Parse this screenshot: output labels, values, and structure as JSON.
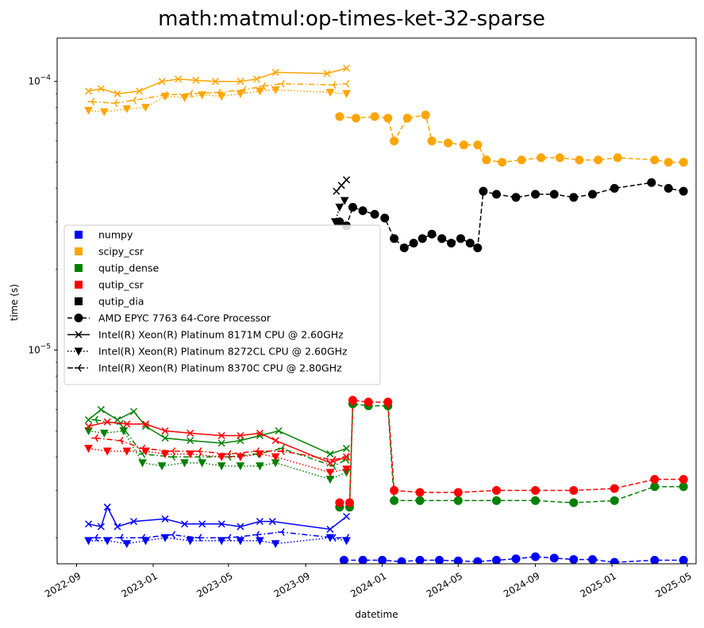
{
  "chart_data": {
    "type": "line",
    "title": "math:matmul:op-times-ket-32-sparse",
    "xlabel": "datetime",
    "ylabel": "time (s)",
    "y_scale": "log",
    "xlim": [
      "2022-08-01",
      "2025-05-15"
    ],
    "ylim": [
      1.6e-06,
      0.000145
    ],
    "x_ticks": [
      {
        "date": "2022-09-01",
        "label": "2022-09"
      },
      {
        "date": "2023-01-01",
        "label": "2023-01"
      },
      {
        "date": "2023-05-01",
        "label": "2023-05"
      },
      {
        "date": "2023-09-01",
        "label": "2023-09"
      },
      {
        "date": "2024-01-01",
        "label": "2024-01"
      },
      {
        "date": "2024-05-01",
        "label": "2024-05"
      },
      {
        "date": "2024-09-01",
        "label": "2024-09"
      },
      {
        "date": "2025-01-01",
        "label": "2025-01"
      },
      {
        "date": "2025-05-01",
        "label": "2025-05"
      }
    ],
    "y_ticks": [
      {
        "value": 1e-05,
        "label": "10^-5",
        "base": "10",
        "exp": "−5"
      },
      {
        "value": 0.0001,
        "label": "10^-4",
        "base": "10",
        "exp": "−4"
      }
    ],
    "grid": false,
    "legend_position": "center-left",
    "colors": {
      "numpy": "#0000ff",
      "scipy_csr": "#ffa500",
      "qutip_dense": "#008000",
      "qutip_csr": "#ff0000",
      "qutip_dia": "#000000"
    },
    "legend": {
      "libraries": [
        "numpy",
        "scipy_csr",
        "qutip_dense",
        "qutip_csr",
        "qutip_dia"
      ],
      "cpus": [
        {
          "label": "AMD EPYC 7763 64-Core Processor",
          "linestyle": "dashed",
          "marker": "circle"
        },
        {
          "label": "Intel(R) Xeon(R) Platinum 8171M CPU @ 2.60GHz",
          "linestyle": "solid",
          "marker": "x"
        },
        {
          "label": "Intel(R) Xeon(R) Platinum 8272CL CPU @ 2.60GHz",
          "linestyle": "dotted",
          "marker": "triangle-down"
        },
        {
          "label": "Intel(R) Xeon(R) Platinum 8370C CPU @ 2.80GHz",
          "linestyle": "dashdot",
          "marker": "tri-left"
        }
      ]
    },
    "series": [
      {
        "library": "scipy_csr",
        "cpu": "Intel(R) Xeon(R) Platinum 8171M CPU @ 2.60GHz",
        "x": [
          "2022-09-20",
          "2022-10-10",
          "2022-11-05",
          "2022-12-10",
          "2023-01-15",
          "2023-02-10",
          "2023-03-10",
          "2023-04-10",
          "2023-05-20",
          "2023-06-15",
          "2023-07-15",
          "2023-10-05",
          "2023-11-05"
        ],
        "y": [
          9.2e-05,
          9.4e-05,
          9e-05,
          9.2e-05,
          0.0001,
          0.000102,
          0.000101,
          0.0001,
          0.0001,
          0.000102,
          0.000108,
          0.000107,
          0.000112
        ]
      },
      {
        "library": "scipy_csr",
        "cpu": "Intel(R) Xeon(R) Platinum 8272CL CPU @ 2.60GHz",
        "x": [
          "2022-09-20",
          "2022-10-15",
          "2022-11-20",
          "2022-12-20",
          "2023-01-20",
          "2023-02-20",
          "2023-03-20",
          "2023-04-20",
          "2023-05-20",
          "2023-06-20",
          "2023-07-15",
          "2023-10-10",
          "2023-11-05"
        ],
        "y": [
          7.8e-05,
          7.7e-05,
          7.9e-05,
          8e-05,
          8.8e-05,
          8.7e-05,
          8.9e-05,
          8.8e-05,
          9e-05,
          9.2e-05,
          9.3e-05,
          9.1e-05,
          9e-05
        ]
      },
      {
        "library": "scipy_csr",
        "cpu": "Intel(R) Xeon(R) Platinum 8370C CPU @ 2.80GHz",
        "x": [
          "2022-09-25",
          "2022-11-01",
          "2022-12-01",
          "2023-01-20",
          "2023-03-01",
          "2023-04-15",
          "2023-05-25",
          "2023-06-25",
          "2023-07-25",
          "2023-10-15",
          "2023-11-05"
        ],
        "y": [
          8.4e-05,
          8.3e-05,
          8.5e-05,
          8.9e-05,
          9e-05,
          9.1e-05,
          9.3e-05,
          9.6e-05,
          9.8e-05,
          9.7e-05,
          9.8e-05
        ]
      },
      {
        "library": "scipy_csr",
        "cpu": "AMD EPYC 7763 64-Core Processor",
        "x": [
          "2023-10-25",
          "2023-11-20",
          "2023-12-20",
          "2024-01-10",
          "2024-01-20",
          "2024-02-10",
          "2024-03-10",
          "2024-03-20",
          "2024-04-15",
          "2024-05-10",
          "2024-06-01",
          "2024-06-15",
          "2024-07-10",
          "2024-08-10",
          "2024-09-10",
          "2024-10-10",
          "2024-11-10",
          "2024-12-10",
          "2025-01-10",
          "2025-03-10",
          "2025-04-01",
          "2025-04-25"
        ],
        "y": [
          7.4e-05,
          7.3e-05,
          7.4e-05,
          7.3e-05,
          6e-05,
          7.3e-05,
          7.5e-05,
          6e-05,
          5.9e-05,
          5.8e-05,
          5.8e-05,
          5.1e-05,
          5e-05,
          5.1e-05,
          5.2e-05,
          5.2e-05,
          5.1e-05,
          5.1e-05,
          5.2e-05,
          5.1e-05,
          5e-05,
          5e-05
        ]
      },
      {
        "library": "qutip_dia",
        "cpu": "AMD EPYC 7763 64-Core Processor",
        "x": [
          "2023-10-25",
          "2023-11-05",
          "2023-11-15",
          "2023-12-01",
          "2023-12-20",
          "2024-01-05",
          "2024-01-20",
          "2024-02-05",
          "2024-02-20",
          "2024-03-05",
          "2024-03-20",
          "2024-04-05",
          "2024-04-20",
          "2024-05-05",
          "2024-05-20",
          "2024-06-01",
          "2024-06-10",
          "2024-07-01",
          "2024-08-01",
          "2024-09-01",
          "2024-10-01",
          "2024-11-01",
          "2024-12-01",
          "2025-01-05",
          "2025-03-05",
          "2025-04-01",
          "2025-04-25"
        ],
        "y": [
          3e-05,
          2.9e-05,
          3.4e-05,
          3.3e-05,
          3.2e-05,
          3.1e-05,
          2.6e-05,
          2.4e-05,
          2.5e-05,
          2.6e-05,
          2.7e-05,
          2.6e-05,
          2.5e-05,
          2.6e-05,
          2.5e-05,
          2.4e-05,
          3.9e-05,
          3.8e-05,
          3.7e-05,
          3.8e-05,
          3.8e-05,
          3.7e-05,
          3.8e-05,
          4e-05,
          4.2e-05,
          4e-05,
          3.9e-05
        ]
      },
      {
        "library": "qutip_dia",
        "cpu": "Intel(R) Xeon(R) Platinum 8171M CPU @ 2.60GHz",
        "x": [
          "2023-10-20",
          "2023-10-28",
          "2023-11-05"
        ],
        "y": [
          3.9e-05,
          4.1e-05,
          4.3e-05
        ]
      },
      {
        "library": "qutip_dia",
        "cpu": "Intel(R) Xeon(R) Platinum 8272CL CPU @ 2.60GHz",
        "x": [
          "2023-10-18",
          "2023-10-25",
          "2023-11-02"
        ],
        "y": [
          3e-05,
          3.4e-05,
          3.6e-05
        ]
      },
      {
        "library": "qutip_dense",
        "cpu": "Intel(R) Xeon(R) Platinum 8171M CPU @ 2.60GHz",
        "x": [
          "2022-09-20",
          "2022-10-10",
          "2022-11-05",
          "2022-12-01",
          "2022-12-20",
          "2023-01-20",
          "2023-03-01",
          "2023-04-20",
          "2023-05-20",
          "2023-06-20",
          "2023-07-20",
          "2023-10-10",
          "2023-11-05"
        ],
        "y": [
          5.5e-06,
          6e-06,
          5.5e-06,
          5.9e-06,
          5.2e-06,
          4.7e-06,
          4.6e-06,
          4.5e-06,
          4.6e-06,
          4.8e-06,
          5e-06,
          4.1e-06,
          4.3e-06
        ]
      },
      {
        "library": "qutip_dense",
        "cpu": "Intel(R) Xeon(R) Platinum 8272CL CPU @ 2.60GHz",
        "x": [
          "2022-09-20",
          "2022-10-15",
          "2022-11-15",
          "2022-12-15",
          "2023-01-15",
          "2023-02-20",
          "2023-03-20",
          "2023-04-20",
          "2023-05-20",
          "2023-06-20",
          "2023-07-15",
          "2023-10-10",
          "2023-11-05"
        ],
        "y": [
          5e-06,
          4.9e-06,
          5e-06,
          3.8e-06,
          3.7e-06,
          3.8e-06,
          3.8e-06,
          3.7e-06,
          3.7e-06,
          3.7e-06,
          3.8e-06,
          3.3e-06,
          3.5e-06
        ]
      },
      {
        "library": "qutip_dense",
        "cpu": "Intel(R) Xeon(R) Platinum 8370C CPU @ 2.80GHz",
        "x": [
          "2022-10-01",
          "2022-11-10",
          "2022-12-15",
          "2023-02-01",
          "2023-03-15",
          "2023-05-01",
          "2023-06-15",
          "2023-07-25",
          "2023-10-15",
          "2023-11-05"
        ],
        "y": [
          5.5e-06,
          5.3e-06,
          4.1e-06,
          4e-06,
          4e-06,
          4e-06,
          4.1e-06,
          4.3e-06,
          3.7e-06,
          3.9e-06
        ]
      },
      {
        "library": "qutip_dense",
        "cpu": "AMD EPYC 7763 64-Core Processor",
        "x": [
          "2023-10-25",
          "2023-11-10",
          "2023-11-15",
          "2023-12-10",
          "2024-01-10",
          "2024-01-20",
          "2024-03-01",
          "2024-05-01",
          "2024-07-01",
          "2024-09-01",
          "2024-11-01",
          "2025-01-05",
          "2025-03-10",
          "2025-04-25"
        ],
        "y": [
          2.6e-06,
          2.6e-06,
          6.3e-06,
          6.2e-06,
          6.2e-06,
          2.75e-06,
          2.75e-06,
          2.75e-06,
          2.75e-06,
          2.75e-06,
          2.7e-06,
          2.75e-06,
          3.1e-06,
          3.1e-06
        ]
      },
      {
        "library": "qutip_csr",
        "cpu": "Intel(R) Xeon(R) Platinum 8171M CPU @ 2.60GHz",
        "x": [
          "2022-09-20",
          "2022-10-20",
          "2022-11-20",
          "2022-12-20",
          "2023-01-20",
          "2023-03-01",
          "2023-04-20",
          "2023-05-20",
          "2023-06-20",
          "2023-07-15",
          "2023-10-10",
          "2023-11-05"
        ],
        "y": [
          5.2e-06,
          5.4e-06,
          5.3e-06,
          5.3e-06,
          5e-06,
          4.9e-06,
          4.8e-06,
          4.8e-06,
          4.9e-06,
          4.6e-06,
          3.8e-06,
          4e-06
        ]
      },
      {
        "library": "qutip_csr",
        "cpu": "Intel(R) Xeon(R) Platinum 8272CL CPU @ 2.60GHz",
        "x": [
          "2022-09-20",
          "2022-10-20",
          "2022-11-20",
          "2022-12-20",
          "2023-01-20",
          "2023-03-01",
          "2023-04-20",
          "2023-05-20",
          "2023-06-20",
          "2023-07-15",
          "2023-10-10",
          "2023-11-05"
        ],
        "y": [
          4.3e-06,
          4.2e-06,
          4.2e-06,
          4.2e-06,
          4.1e-06,
          4.1e-06,
          4e-06,
          4e-06,
          4.1e-06,
          4e-06,
          3.5e-06,
          3.6e-06
        ]
      },
      {
        "library": "qutip_csr",
        "cpu": "Intel(R) Xeon(R) Platinum 8370C CPU @ 2.80GHz",
        "x": [
          "2022-10-01",
          "2022-11-10",
          "2022-12-15",
          "2023-02-01",
          "2023-03-15",
          "2023-05-01",
          "2023-06-15",
          "2023-07-25",
          "2023-10-15",
          "2023-11-05"
        ],
        "y": [
          4.7e-06,
          4.6e-06,
          4.3e-06,
          4.2e-06,
          4.2e-06,
          4.1e-06,
          4.2e-06,
          4.2e-06,
          3.9e-06,
          4e-06
        ]
      },
      {
        "library": "qutip_csr",
        "cpu": "AMD EPYC 7763 64-Core Processor",
        "x": [
          "2023-10-25",
          "2023-11-10",
          "2023-11-15",
          "2023-12-10",
          "2024-01-10",
          "2024-01-20",
          "2024-03-01",
          "2024-05-01",
          "2024-07-01",
          "2024-09-01",
          "2024-11-01",
          "2025-01-05",
          "2025-03-10",
          "2025-04-25"
        ],
        "y": [
          2.7e-06,
          2.7e-06,
          6.5e-06,
          6.4e-06,
          6.4e-06,
          3e-06,
          2.95e-06,
          2.95e-06,
          3e-06,
          3e-06,
          3e-06,
          3.05e-06,
          3.3e-06,
          3.3e-06
        ]
      },
      {
        "library": "numpy",
        "cpu": "Intel(R) Xeon(R) Platinum 8171M CPU @ 2.60GHz",
        "x": [
          "2022-09-20",
          "2022-10-10",
          "2022-10-20",
          "2022-11-05",
          "2022-12-01",
          "2023-01-20",
          "2023-02-20",
          "2023-03-20",
          "2023-04-20",
          "2023-05-20",
          "2023-06-20",
          "2023-07-10",
          "2023-10-10",
          "2023-11-05"
        ],
        "y": [
          2.25e-06,
          2.2e-06,
          2.6e-06,
          2.2e-06,
          2.3e-06,
          2.35e-06,
          2.25e-06,
          2.25e-06,
          2.25e-06,
          2.2e-06,
          2.3e-06,
          2.3e-06,
          2.15e-06,
          2.4e-06
        ]
      },
      {
        "library": "numpy",
        "cpu": "Intel(R) Xeon(R) Platinum 8272CL CPU @ 2.60GHz",
        "x": [
          "2022-09-20",
          "2022-10-20",
          "2022-11-20",
          "2022-12-20",
          "2023-01-20",
          "2023-03-01",
          "2023-04-20",
          "2023-05-20",
          "2023-06-20",
          "2023-07-15",
          "2023-10-10",
          "2023-11-05"
        ],
        "y": [
          1.95e-06,
          1.95e-06,
          1.9e-06,
          1.95e-06,
          2e-06,
          1.95e-06,
          1.95e-06,
          1.95e-06,
          1.95e-06,
          1.9e-06,
          2e-06,
          1.95e-06
        ]
      },
      {
        "library": "numpy",
        "cpu": "Intel(R) Xeon(R) Platinum 8370C CPU @ 2.80GHz",
        "x": [
          "2022-10-01",
          "2022-11-10",
          "2022-12-15",
          "2023-02-01",
          "2023-03-15",
          "2023-05-01",
          "2023-06-15",
          "2023-07-25",
          "2023-10-15",
          "2023-11-05"
        ],
        "y": [
          2e-06,
          2e-06,
          2e-06,
          2.05e-06,
          2e-06,
          2e-06,
          2.05e-06,
          2.1e-06,
          2e-06,
          2e-06
        ]
      },
      {
        "library": "numpy",
        "cpu": "AMD EPYC 7763 64-Core Processor",
        "x": [
          "2023-11-01",
          "2023-12-01",
          "2024-01-01",
          "2024-02-01",
          "2024-03-01",
          "2024-04-01",
          "2024-05-01",
          "2024-06-01",
          "2024-07-01",
          "2024-08-01",
          "2024-09-01",
          "2024-10-01",
          "2024-11-01",
          "2024-12-01",
          "2025-01-05",
          "2025-03-10",
          "2025-04-25"
        ],
        "y": [
          1.65e-06,
          1.65e-06,
          1.65e-06,
          1.63e-06,
          1.65e-06,
          1.65e-06,
          1.64e-06,
          1.63e-06,
          1.65e-06,
          1.67e-06,
          1.7e-06,
          1.68e-06,
          1.66e-06,
          1.66e-06,
          1.62e-06,
          1.65e-06,
          1.65e-06
        ]
      }
    ]
  }
}
